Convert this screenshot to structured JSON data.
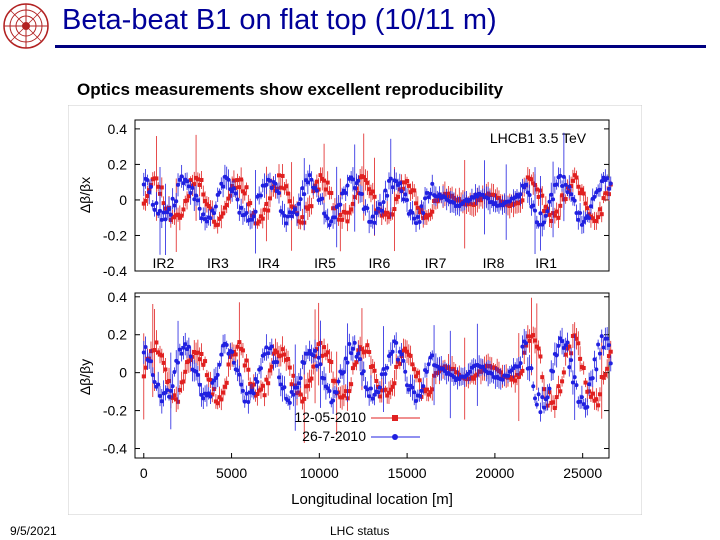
{
  "slide": {
    "title": "Beta-beat B1 on flat top (10/11 m)",
    "subtitle": "Optics measurements show excellent reproducibility",
    "footer_date": "9/5/2021",
    "footer_center": "LHC status"
  },
  "colors": {
    "title": "#000099",
    "rule": "#000080",
    "series_1": "#e02020",
    "series_2": "#2020e0",
    "logo": "#b22222"
  },
  "icons": {
    "logo": "cern-logo-icon"
  },
  "chart_data": [
    {
      "type": "scatter",
      "title": "",
      "annotation": "LHCB1 3.5 TeV",
      "ylabel": "Δβ/βx",
      "xlabel": "",
      "xlim": [
        -500,
        26500
      ],
      "ylim": [
        -0.4,
        0.45
      ],
      "yticks": [
        0.4,
        0.2,
        0,
        -0.2,
        -0.4
      ],
      "ytick_labels": [
        "0.4",
        "0.2",
        "0",
        "-0.2",
        "-0.4"
      ],
      "ir_labels": [
        {
          "label": "IR2",
          "x": 500
        },
        {
          "label": "IR3",
          "x": 3600
        },
        {
          "label": "IR4",
          "x": 6500
        },
        {
          "label": "IR5",
          "x": 9700
        },
        {
          "label": "IR6",
          "x": 12800
        },
        {
          "label": "IR7",
          "x": 16000
        },
        {
          "label": "IR8",
          "x": 19300
        },
        {
          "label": "IR1",
          "x": 22300
        }
      ],
      "series": [
        {
          "name": "12-05-2010",
          "color": "#e02020",
          "marker": "square",
          "x_start": 0,
          "x_end": 26600,
          "points": 260,
          "amplitude": 0.12,
          "seed": 11
        },
        {
          "name": "26-7-2010",
          "color": "#2020e0",
          "marker": "circle",
          "x_start": 0,
          "x_end": 26600,
          "points": 260,
          "amplitude": 0.12,
          "seed": 29
        }
      ]
    },
    {
      "type": "scatter",
      "title": "",
      "ylabel": "Δβ/βy",
      "xlabel": "Longitudinal location [m]",
      "xlim": [
        -500,
        26500
      ],
      "ylim": [
        -0.45,
        0.42
      ],
      "yticks": [
        0.4,
        0.2,
        0,
        -0.2,
        -0.4
      ],
      "ytick_labels": [
        "0.4",
        "0.2",
        "0",
        "-0.2",
        "-0.4"
      ],
      "xticks": [
        0,
        5000,
        10000,
        15000,
        20000,
        25000
      ],
      "xtick_labels": [
        "0",
        "5000",
        "10000",
        "15000",
        "20000",
        "25000"
      ],
      "legend_position": "bottom-center",
      "series": [
        {
          "name": "12-05-2010",
          "color": "#e02020",
          "marker": "square",
          "x_start": 0,
          "x_end": 26600,
          "points": 260,
          "amplitude": 0.14,
          "seed": 47
        },
        {
          "name": "26-7-2010",
          "color": "#2020e0",
          "marker": "circle",
          "x_start": 0,
          "x_end": 26600,
          "points": 260,
          "amplitude": 0.14,
          "seed": 83
        }
      ]
    }
  ]
}
